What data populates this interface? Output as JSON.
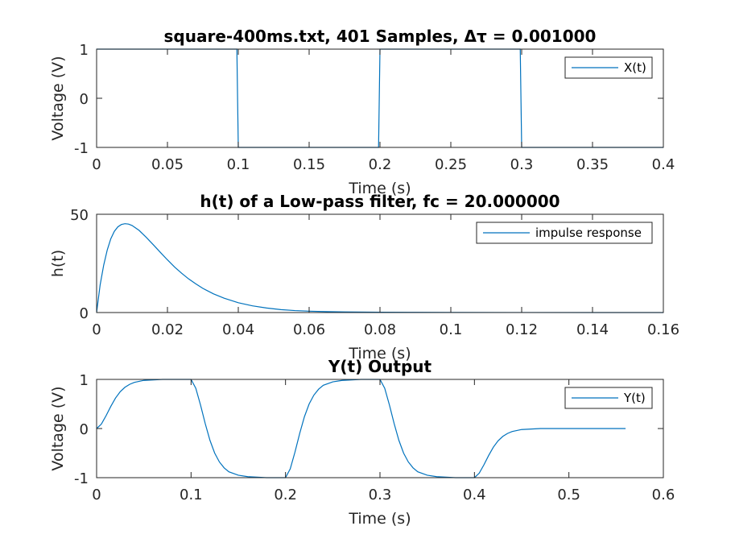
{
  "chart_data": [
    {
      "type": "line",
      "title": "square-400ms.txt, 401 Samples, Δτ = 0.001000",
      "xlabel": "Time (s)",
      "ylabel": "Voltage (V)",
      "xlim": [
        0,
        0.4
      ],
      "ylim": [
        -1,
        1
      ],
      "xticks": [
        "0",
        "0.05",
        "0.1",
        "0.15",
        "0.2",
        "0.25",
        "0.3",
        "0.35",
        "0.4"
      ],
      "yticks": [
        "-1",
        "0",
        "1"
      ],
      "legend_position": "top-right",
      "grid": false,
      "series": [
        {
          "name": "X(t)",
          "color": "#0072BD",
          "x": [
            0,
            0.099,
            0.1,
            0.199,
            0.2,
            0.299,
            0.3,
            0.4
          ],
          "y": [
            1,
            1,
            -1,
            -1,
            1,
            1,
            -1,
            -1
          ]
        }
      ]
    },
    {
      "type": "line",
      "title": "h(t) of a Low-pass filter, fc = 20.000000",
      "xlabel": "Time (s)",
      "ylabel": "h(t)",
      "xlim": [
        0,
        0.16
      ],
      "ylim": [
        0,
        50
      ],
      "xticks": [
        "0",
        "0.02",
        "0.04",
        "0.06",
        "0.08",
        "0.1",
        "0.12",
        "0.14",
        "0.16"
      ],
      "yticks": [
        "0",
        "50"
      ],
      "legend_position": "top-right",
      "grid": false,
      "series": [
        {
          "name": "impulse response",
          "color": "#0072BD",
          "x": [
            0,
            0.001,
            0.002,
            0.003,
            0.004,
            0.005,
            0.006,
            0.007,
            0.008,
            0.009,
            0.01,
            0.012,
            0.014,
            0.016,
            0.018,
            0.02,
            0.022,
            0.024,
            0.026,
            0.028,
            0.03,
            0.033,
            0.036,
            0.04,
            0.044,
            0.048,
            0.052,
            0.056,
            0.06,
            0.065,
            0.07,
            0.08,
            0.09,
            0.1,
            0.12,
            0.14,
            0.16
          ],
          "y": [
            0,
            14.1,
            24.1,
            31.8,
            37.5,
            41.3,
            43.6,
            44.8,
            45.2,
            45.0,
            44.3,
            41.8,
            38.3,
            34.5,
            30.6,
            26.8,
            23.2,
            20.0,
            17.1,
            14.6,
            12.3,
            9.5,
            7.3,
            5.0,
            3.4,
            2.3,
            1.5,
            1.0,
            0.7,
            0.45,
            0.3,
            0.15,
            0.1,
            0.06,
            0.03,
            0.01,
            0
          ]
        }
      ]
    },
    {
      "type": "line",
      "title": "Y(t) Output",
      "xlabel": "Time (s)",
      "ylabel": "Voltage (V)",
      "xlim": [
        0,
        0.6
      ],
      "ylim": [
        -1,
        1
      ],
      "xticks": [
        "0",
        "0.1",
        "0.2",
        "0.3",
        "0.4",
        "0.5",
        "0.6"
      ],
      "yticks": [
        "-1",
        "0",
        "1"
      ],
      "legend_position": "top-right",
      "grid": false,
      "series": [
        {
          "name": "Y(t)",
          "color": "#0072BD",
          "x": [
            0,
            0.005,
            0.01,
            0.015,
            0.02,
            0.025,
            0.03,
            0.035,
            0.04,
            0.05,
            0.06,
            0.07,
            0.08,
            0.09,
            0.1,
            0.105,
            0.11,
            0.115,
            0.12,
            0.125,
            0.13,
            0.135,
            0.14,
            0.15,
            0.16,
            0.17,
            0.18,
            0.19,
            0.2,
            0.205,
            0.21,
            0.215,
            0.22,
            0.225,
            0.23,
            0.235,
            0.24,
            0.25,
            0.26,
            0.27,
            0.28,
            0.29,
            0.3,
            0.305,
            0.31,
            0.315,
            0.32,
            0.325,
            0.33,
            0.335,
            0.34,
            0.35,
            0.36,
            0.37,
            0.38,
            0.39,
            0.4,
            0.405,
            0.41,
            0.415,
            0.42,
            0.425,
            0.43,
            0.435,
            0.44,
            0.45,
            0.46,
            0.47,
            0.48,
            0.5,
            0.52,
            0.54,
            0.56
          ],
          "y": [
            0.0,
            0.09,
            0.26,
            0.45,
            0.62,
            0.75,
            0.84,
            0.9,
            0.94,
            0.98,
            0.99,
            1.0,
            1.0,
            1.0,
            1.0,
            0.82,
            0.48,
            0.1,
            -0.24,
            -0.5,
            -0.68,
            -0.8,
            -0.88,
            -0.95,
            -0.98,
            -0.99,
            -1.0,
            -1.0,
            -1.0,
            -0.82,
            -0.48,
            -0.1,
            0.24,
            0.5,
            0.68,
            0.8,
            0.88,
            0.95,
            0.98,
            0.99,
            1.0,
            1.0,
            1.0,
            0.82,
            0.48,
            0.1,
            -0.24,
            -0.5,
            -0.68,
            -0.8,
            -0.88,
            -0.95,
            -0.98,
            -0.99,
            -1.0,
            -1.0,
            -1.0,
            -0.91,
            -0.74,
            -0.55,
            -0.38,
            -0.25,
            -0.16,
            -0.1,
            -0.06,
            -0.02,
            -0.01,
            0.0,
            0.0,
            0.0,
            0.0,
            0.0,
            0.0
          ]
        }
      ]
    }
  ]
}
